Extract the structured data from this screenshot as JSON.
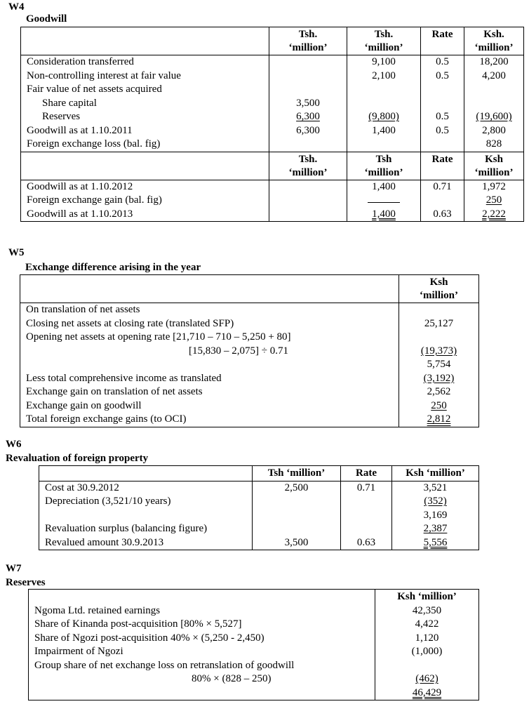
{
  "w4": {
    "label": "W4",
    "title": "Goodwill",
    "header1": [
      "",
      "Tsh.\n‘million’",
      "Tsh.\n‘million’",
      "Rate",
      "Ksh.\n‘million’"
    ],
    "rows1": [
      [
        {
          "t": "Consideration transferred"
        },
        {
          "t": ""
        },
        {
          "t": "9,100"
        },
        {
          "t": "0.5"
        },
        {
          "t": "18,200"
        }
      ],
      [
        {
          "t": "Non-controlling interest at fair value"
        },
        {
          "t": ""
        },
        {
          "t": "2,100"
        },
        {
          "t": "0.5"
        },
        {
          "t": "4,200"
        }
      ],
      [
        {
          "t": "Fair value of net assets acquired"
        },
        {
          "t": ""
        },
        {
          "t": ""
        },
        {
          "t": ""
        },
        {
          "t": ""
        }
      ],
      [
        {
          "t": "Share capital",
          "i": 1
        },
        {
          "t": "3,500"
        },
        {
          "t": ""
        },
        {
          "t": ""
        },
        {
          "t": ""
        }
      ],
      [
        {
          "t": "Reserves",
          "i": 1
        },
        {
          "t": "6,300",
          "u": 1
        },
        {
          "t": "(9,800)",
          "u": 1
        },
        {
          "t": "0.5"
        },
        {
          "t": "(19,600)",
          "u": 1
        }
      ],
      [
        {
          "t": "Goodwill as at 1.10.2011"
        },
        {
          "t": "6,300"
        },
        {
          "t": "1,400"
        },
        {
          "t": "0.5"
        },
        {
          "t": "2,800"
        }
      ],
      [
        {
          "t": "Foreign exchange loss (bal. fig)"
        },
        {
          "t": ""
        },
        {
          "t": ""
        },
        {
          "t": ""
        },
        {
          "t": "828"
        }
      ]
    ],
    "header2": [
      "",
      "Tsh.\n‘million’",
      "Tsh\n‘million’",
      "Rate",
      "Ksh\n‘million’"
    ],
    "rows2": [
      [
        {
          "t": "Goodwill as at 1.10.2012"
        },
        {
          "t": ""
        },
        {
          "t": "1,400"
        },
        {
          "t": "0.71"
        },
        {
          "t": "1,972"
        }
      ],
      [
        {
          "t": "Foreign exchange gain (bal. fig)"
        },
        {
          "t": ""
        },
        {
          "t": "",
          "rule": true
        },
        {
          "t": ""
        },
        {
          "t": "250",
          "u": 1
        }
      ],
      [
        {
          "t": "Goodwill as at 1.10.2013"
        },
        {
          "t": ""
        },
        {
          "t": "1,400",
          "u": 2
        },
        {
          "t": "0.63"
        },
        {
          "t": "2,222",
          "u": 2
        }
      ]
    ]
  },
  "w5": {
    "label": "W5",
    "title": "Exchange difference arising in the year",
    "header": [
      "",
      "Ksh\n‘million’"
    ],
    "rows": [
      [
        {
          "t": "On translation of net assets"
        },
        {
          "t": ""
        }
      ],
      [
        {
          "t": "Closing net assets at closing rate (translated SFP)"
        },
        {
          "t": "25,127"
        }
      ],
      [
        {
          "t": "Opening net assets at opening rate [21,710 – 710 – 5,250 + 80]"
        },
        {
          "t": ""
        }
      ],
      [
        {
          "t": "[15,830 – 2,075] ÷ 0.71",
          "cont": 1
        },
        {
          "t": "(19,373)",
          "u": 1
        }
      ],
      [
        {
          "t": ""
        },
        {
          "t": "5,754"
        }
      ],
      [
        {
          "t": "Less total comprehensive income as translated"
        },
        {
          "t": "(3,192)",
          "u": 1
        }
      ],
      [
        {
          "t": "Exchange gain on translation of net assets"
        },
        {
          "t": "2,562"
        }
      ],
      [
        {
          "t": "Exchange gain on goodwill"
        },
        {
          "t": "250",
          "u": 1
        }
      ],
      [
        {
          "t": "Total foreign exchange gains (to OCI)"
        },
        {
          "t": "2,812",
          "u": 2
        }
      ]
    ]
  },
  "w6": {
    "label": "W6",
    "title": "Revaluation of foreign property",
    "header": [
      "",
      "Tsh ‘million’",
      "Rate",
      "Ksh ‘million’"
    ],
    "rows": [
      [
        {
          "t": "Cost at 30.9.2012"
        },
        {
          "t": "2,500"
        },
        {
          "t": "0.71"
        },
        {
          "t": "3,521"
        }
      ],
      [
        {
          "t": "Depreciation (3,521/10 years)"
        },
        {
          "t": ""
        },
        {
          "t": ""
        },
        {
          "t": "(352)",
          "u": 1
        }
      ],
      [
        {
          "t": ""
        },
        {
          "t": ""
        },
        {
          "t": ""
        },
        {
          "t": "3,169"
        }
      ],
      [
        {
          "t": "Revaluation surplus (balancing figure)"
        },
        {
          "t": ""
        },
        {
          "t": ""
        },
        {
          "t": "2,387",
          "u": 1
        }
      ],
      [
        {
          "t": "Revalued amount 30.9.2013"
        },
        {
          "t": "3,500"
        },
        {
          "t": "0.63"
        },
        {
          "t": "5,556",
          "u": 2
        }
      ]
    ]
  },
  "w7": {
    "label": "W7",
    "title": "Reserves",
    "header": [
      "",
      "Ksh ‘million’"
    ],
    "rows": [
      [
        {
          "t": "Ngoma Ltd. retained earnings"
        },
        {
          "t": "42,350"
        }
      ],
      [
        {
          "t": "Share of Kinanda post-acquisition [80% × 5,527]"
        },
        {
          "t": "4,422"
        }
      ],
      [
        {
          "t": "Share of Ngozi post-acquisition 40% × (5,250 - 2,450)"
        },
        {
          "t": "1,120"
        }
      ],
      [
        {
          "t": "Impairment of Ngozi"
        },
        {
          "t": "(1,000)"
        }
      ],
      [
        {
          "t": "Group share of net exchange loss on retranslation of goodwill"
        },
        {
          "t": ""
        }
      ],
      [
        {
          "t": "80% × (828 – 250)",
          "cont": 2
        },
        {
          "t": "(462)",
          "u": 1
        }
      ],
      [
        {
          "t": ""
        },
        {
          "t": "46,429",
          "u": 2
        }
      ]
    ]
  }
}
